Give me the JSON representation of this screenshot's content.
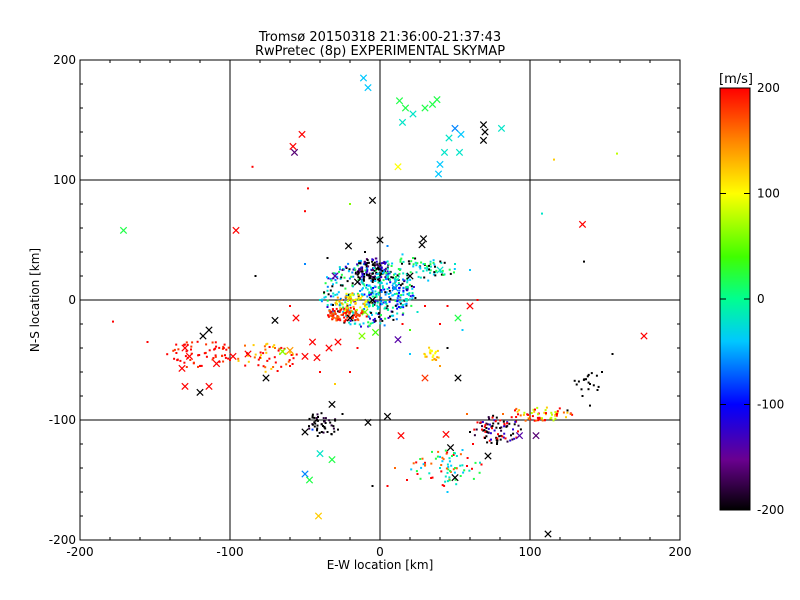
{
  "chart_data": {
    "type": "scatter",
    "title": "Tromsø 20150318 21:36:00-21:37:43",
    "subtitle": "RwPretec (8p) EXPERIMENTAL SKYMAP",
    "xlabel": "E-W location [km]",
    "ylabel": "N-S location [km]",
    "xlim": [
      -200,
      200
    ],
    "ylim": [
      -200,
      200
    ],
    "xticks": [
      "-200",
      "-100",
      "0",
      "100",
      "200"
    ],
    "yticks": [
      "-200",
      "-100",
      "0",
      "100",
      "200"
    ],
    "grid": true,
    "colorbar": {
      "label": "[m/s]",
      "range": [
        -200,
        200
      ],
      "ticks": [
        "200",
        "100",
        "0",
        "-100",
        "-200"
      ],
      "colors": [
        "#000000",
        "#8000a0",
        "#0000ff",
        "#00c0ff",
        "#00ff80",
        "#40ff00",
        "#ffff00",
        "#ff8000",
        "#ff0000"
      ]
    },
    "crosses": [
      {
        "x": -11,
        "y": 185,
        "v": -40
      },
      {
        "x": -8,
        "y": 177,
        "v": -40
      },
      {
        "x": 13,
        "y": 166,
        "v": 20
      },
      {
        "x": 17,
        "y": 160,
        "v": 20
      },
      {
        "x": 22,
        "y": 155,
        "v": -20
      },
      {
        "x": 30,
        "y": 160,
        "v": 20
      },
      {
        "x": 35,
        "y": 163,
        "v": 20
      },
      {
        "x": 38,
        "y": 167,
        "v": 20
      },
      {
        "x": 15,
        "y": 148,
        "v": -20
      },
      {
        "x": 50,
        "y": 143,
        "v": -60
      },
      {
        "x": 54,
        "y": 138,
        "v": -40
      },
      {
        "x": 81,
        "y": 143,
        "v": -20
      },
      {
        "x": 69,
        "y": 146,
        "v": -200
      },
      {
        "x": 70,
        "y": 140,
        "v": -200
      },
      {
        "x": 69,
        "y": 133,
        "v": -200
      },
      {
        "x": 46,
        "y": 135,
        "v": -20
      },
      {
        "x": 43,
        "y": 123,
        "v": -20
      },
      {
        "x": 53,
        "y": 123,
        "v": -20
      },
      {
        "x": 40,
        "y": 113,
        "v": -40
      },
      {
        "x": 39,
        "y": 105,
        "v": -40
      },
      {
        "x": 12,
        "y": 111,
        "v": 100
      },
      {
        "x": -52,
        "y": 138,
        "v": 200
      },
      {
        "x": -58,
        "y": 128,
        "v": 200
      },
      {
        "x": -57,
        "y": 123,
        "v": -160
      },
      {
        "x": -171,
        "y": 58,
        "v": 20
      },
      {
        "x": -96,
        "y": 58,
        "v": 200
      },
      {
        "x": -5,
        "y": 83,
        "v": -200
      },
      {
        "x": 0,
        "y": 50,
        "v": -200
      },
      {
        "x": 29,
        "y": 51,
        "v": -200
      },
      {
        "x": 28,
        "y": 46,
        "v": -200
      },
      {
        "x": -21,
        "y": 45,
        "v": -200
      },
      {
        "x": 176,
        "y": -30,
        "v": 200
      },
      {
        "x": -114,
        "y": -25,
        "v": -200
      },
      {
        "x": -118,
        "y": -30,
        "v": -200
      },
      {
        "x": -130,
        "y": -40,
        "v": 200
      },
      {
        "x": -127,
        "y": -47,
        "v": 200
      },
      {
        "x": -132,
        "y": -57,
        "v": 200
      },
      {
        "x": -130,
        "y": -72,
        "v": 200
      },
      {
        "x": -114,
        "y": -72,
        "v": 200
      },
      {
        "x": -120,
        "y": -77,
        "v": -200
      },
      {
        "x": -109,
        "y": -53,
        "v": 200
      },
      {
        "x": -98,
        "y": -47,
        "v": 200
      },
      {
        "x": -88,
        "y": -45,
        "v": 200
      },
      {
        "x": -76,
        "y": -65,
        "v": -200
      },
      {
        "x": -70,
        "y": -17,
        "v": -200
      },
      {
        "x": -56,
        "y": -15,
        "v": 200
      },
      {
        "x": -65,
        "y": -43,
        "v": 60
      },
      {
        "x": -60,
        "y": -42,
        "v": 140
      },
      {
        "x": -50,
        "y": -47,
        "v": 200
      },
      {
        "x": -42,
        "y": -48,
        "v": 200
      },
      {
        "x": -34,
        "y": -40,
        "v": 200
      },
      {
        "x": -28,
        "y": -35,
        "v": 200
      },
      {
        "x": -45,
        "y": -35,
        "v": 200
      },
      {
        "x": -12,
        "y": -30,
        "v": 60
      },
      {
        "x": -20,
        "y": -15,
        "v": -200
      },
      {
        "x": -3,
        "y": -27,
        "v": 40
      },
      {
        "x": 12,
        "y": -33,
        "v": -140
      },
      {
        "x": 52,
        "y": -15,
        "v": 20
      },
      {
        "x": 52,
        "y": -65,
        "v": -200
      },
      {
        "x": 30,
        "y": -65,
        "v": 180
      },
      {
        "x": -8,
        "y": -102,
        "v": -200
      },
      {
        "x": 5,
        "y": -97,
        "v": -200
      },
      {
        "x": -32,
        "y": -87,
        "v": -200
      },
      {
        "x": -50,
        "y": -110,
        "v": -200
      },
      {
        "x": -40,
        "y": -128,
        "v": -20
      },
      {
        "x": -32,
        "y": -133,
        "v": 20
      },
      {
        "x": -50,
        "y": -145,
        "v": -60
      },
      {
        "x": -47,
        "y": -150,
        "v": 20
      },
      {
        "x": -41,
        "y": -180,
        "v": 120
      },
      {
        "x": 14,
        "y": -113,
        "v": 200
      },
      {
        "x": 44,
        "y": -112,
        "v": 200
      },
      {
        "x": 47,
        "y": -123,
        "v": -200
      },
      {
        "x": 50,
        "y": -148,
        "v": -200
      },
      {
        "x": 72,
        "y": -130,
        "v": -200
      },
      {
        "x": 93,
        "y": -113,
        "v": -140
      },
      {
        "x": 104,
        "y": -113,
        "v": -160
      },
      {
        "x": 112,
        "y": -195,
        "v": -200
      },
      {
        "x": -30,
        "y": 20,
        "v": -140
      },
      {
        "x": -15,
        "y": 15,
        "v": -200
      },
      {
        "x": -5,
        "y": 0,
        "v": -200
      },
      {
        "x": -10,
        "y": -10,
        "v": 60
      },
      {
        "x": 10,
        "y": 10,
        "v": -60
      },
      {
        "x": 20,
        "y": 20,
        "v": -200
      },
      {
        "x": 40,
        "y": 25,
        "v": -20
      },
      {
        "x": 135,
        "y": 63,
        "v": 200
      },
      {
        "x": 60,
        "y": -5,
        "v": 200
      }
    ],
    "points": [
      {
        "x": -85,
        "y": 111,
        "v": 200
      },
      {
        "x": -48,
        "y": 93,
        "v": 200
      },
      {
        "x": -50,
        "y": 74,
        "v": 200
      },
      {
        "x": -20,
        "y": 80,
        "v": 60
      },
      {
        "x": 116,
        "y": 117,
        "v": 120
      },
      {
        "x": 158,
        "y": 122,
        "v": 80
      },
      {
        "x": 108,
        "y": 72,
        "v": -20
      },
      {
        "x": 135,
        "y": 63,
        "v": 160
      },
      {
        "x": 136,
        "y": 32,
        "v": -200
      },
      {
        "x": -83,
        "y": 20,
        "v": -200
      },
      {
        "x": -178,
        "y": -18,
        "v": 200
      },
      {
        "x": -155,
        "y": -35,
        "v": 200
      },
      {
        "x": 155,
        "y": -45,
        "v": -200
      },
      {
        "x": 145,
        "y": -75,
        "v": -200
      },
      {
        "x": 140,
        "y": -70,
        "v": -200
      },
      {
        "x": 148,
        "y": -60,
        "v": -200
      },
      {
        "x": 135,
        "y": -80,
        "v": -200
      },
      {
        "x": 125,
        "y": -92,
        "v": -200
      },
      {
        "x": 140,
        "y": -88,
        "v": -200
      },
      {
        "x": 118,
        "y": -95,
        "v": 200
      },
      {
        "x": 110,
        "y": -100,
        "v": 200
      },
      {
        "x": 100,
        "y": -97,
        "v": 160
      },
      {
        "x": 90,
        "y": -92,
        "v": 200
      },
      {
        "x": 82,
        "y": -95,
        "v": 160
      },
      {
        "x": 75,
        "y": -98,
        "v": 200
      },
      {
        "x": 65,
        "y": -102,
        "v": 200
      },
      {
        "x": 58,
        "y": -95,
        "v": 160
      },
      {
        "x": 60,
        "y": -110,
        "v": -200
      },
      {
        "x": 70,
        "y": -115,
        "v": -200
      },
      {
        "x": 78,
        "y": -120,
        "v": -200
      },
      {
        "x": 85,
        "y": -118,
        "v": -180
      },
      {
        "x": 75,
        "y": -105,
        "v": -200
      },
      {
        "x": 68,
        "y": -108,
        "v": 200
      },
      {
        "x": 62,
        "y": -120,
        "v": 200
      },
      {
        "x": 55,
        "y": -125,
        "v": -40
      },
      {
        "x": 48,
        "y": -130,
        "v": 20
      },
      {
        "x": 40,
        "y": -140,
        "v": -20
      },
      {
        "x": 35,
        "y": -148,
        "v": 200
      },
      {
        "x": 30,
        "y": -138,
        "v": 160
      },
      {
        "x": 25,
        "y": -145,
        "v": 200
      },
      {
        "x": 18,
        "y": -150,
        "v": 200
      },
      {
        "x": 10,
        "y": -140,
        "v": 160
      },
      {
        "x": 5,
        "y": -155,
        "v": 200
      },
      {
        "x": 45,
        "y": -160,
        "v": -40
      },
      {
        "x": 50,
        "y": -140,
        "v": 20
      },
      {
        "x": -35,
        "y": -110,
        "v": -200
      },
      {
        "x": -42,
        "y": -100,
        "v": -200
      },
      {
        "x": -38,
        "y": -105,
        "v": -200
      },
      {
        "x": -30,
        "y": -100,
        "v": -200
      },
      {
        "x": -28,
        "y": -108,
        "v": -200
      },
      {
        "x": -45,
        "y": -108,
        "v": -80
      },
      {
        "x": -25,
        "y": -95,
        "v": -200
      },
      {
        "x": -5,
        "y": -155,
        "v": -200
      },
      {
        "x": -20,
        "y": -60,
        "v": 200
      },
      {
        "x": -40,
        "y": -60,
        "v": 200
      },
      {
        "x": -60,
        "y": -55,
        "v": 200
      },
      {
        "x": -80,
        "y": -48,
        "v": 200
      },
      {
        "x": -100,
        "y": -50,
        "v": 200
      },
      {
        "x": -120,
        "y": -55,
        "v": 200
      },
      {
        "x": -135,
        "y": -50,
        "v": 200
      },
      {
        "x": -70,
        "y": -40,
        "v": 160
      },
      {
        "x": -90,
        "y": -38,
        "v": 160
      },
      {
        "x": -30,
        "y": -70,
        "v": 120
      },
      {
        "x": 35,
        "y": -50,
        "v": 120
      },
      {
        "x": 40,
        "y": -55,
        "v": 140
      },
      {
        "x": 45,
        "y": -40,
        "v": -200
      },
      {
        "x": 20,
        "y": -45,
        "v": -40
      },
      {
        "x": 25,
        "y": -10,
        "v": -20
      },
      {
        "x": 30,
        "y": -5,
        "v": 200
      },
      {
        "x": 45,
        "y": -5,
        "v": 200
      },
      {
        "x": 65,
        "y": 0,
        "v": 200
      },
      {
        "x": 40,
        "y": -20,
        "v": 200
      },
      {
        "x": -40,
        "y": 0,
        "v": -20
      },
      {
        "x": -60,
        "y": -5,
        "v": 200
      },
      {
        "x": 60,
        "y": 25,
        "v": -40
      },
      {
        "x": 50,
        "y": 30,
        "v": -20
      },
      {
        "x": 55,
        "y": -25,
        "v": -40
      },
      {
        "x": -50,
        "y": 30,
        "v": -60
      },
      {
        "x": -35,
        "y": 35,
        "v": -200
      },
      {
        "x": 5,
        "y": 45,
        "v": -60
      },
      {
        "x": -10,
        "y": 40,
        "v": -200
      },
      {
        "x": 15,
        "y": 38,
        "v": -40
      },
      {
        "x": 22,
        "y": 35,
        "v": 20
      },
      {
        "x": 30,
        "y": 30,
        "v": 20
      },
      {
        "x": -25,
        "y": 25,
        "v": -160
      },
      {
        "x": 20,
        "y": -25,
        "v": 40
      },
      {
        "x": 15,
        "y": -20,
        "v": 200
      },
      {
        "x": -15,
        "y": -40,
        "v": 200
      }
    ],
    "clusters": [
      {
        "cx": -8,
        "cy": 5,
        "rx": 32,
        "ry": 28,
        "v": [
          -40,
          -20,
          20,
          -60,
          -120,
          -200
        ],
        "n": 300,
        "seed": 11
      },
      {
        "cx": -5,
        "cy": 25,
        "rx": 12,
        "ry": 10,
        "v": [
          -200,
          -200,
          -160,
          -120
        ],
        "n": 120,
        "seed": 21
      },
      {
        "cx": 22,
        "cy": 25,
        "rx": 28,
        "ry": 10,
        "v": [
          -40,
          20,
          -200,
          -20
        ],
        "n": 90,
        "seed": 31
      },
      {
        "cx": -22,
        "cy": -12,
        "rx": 14,
        "ry": 6,
        "v": [
          200,
          180,
          160
        ],
        "n": 90,
        "seed": 41
      },
      {
        "cx": -18,
        "cy": -2,
        "rx": 12,
        "ry": 8,
        "v": [
          120,
          100,
          140,
          80
        ],
        "n": 60,
        "seed": 51
      },
      {
        "cx": 5,
        "cy": 5,
        "rx": 18,
        "ry": 14,
        "v": [
          -20,
          -40,
          -60,
          -100,
          0
        ],
        "n": 120,
        "seed": 61
      },
      {
        "cx": -120,
        "cy": -45,
        "rx": 22,
        "ry": 12,
        "v": [
          200,
          200,
          180
        ],
        "n": 60,
        "seed": 71
      },
      {
        "cx": -75,
        "cy": -48,
        "rx": 20,
        "ry": 12,
        "v": [
          200,
          160,
          120,
          200
        ],
        "n": 50,
        "seed": 81
      },
      {
        "cx": -38,
        "cy": -103,
        "rx": 10,
        "ry": 12,
        "v": [
          -200,
          -200,
          -180
        ],
        "n": 45,
        "seed": 91
      },
      {
        "cx": 78,
        "cy": -108,
        "rx": 16,
        "ry": 12,
        "v": [
          -200,
          -200,
          -180,
          200,
          -120
        ],
        "n": 80,
        "seed": 101
      },
      {
        "cx": 105,
        "cy": -95,
        "rx": 25,
        "ry": 6,
        "v": [
          200,
          160,
          120,
          80
        ],
        "n": 60,
        "seed": 111
      },
      {
        "cx": 45,
        "cy": -140,
        "rx": 25,
        "ry": 15,
        "v": [
          -40,
          -20,
          20,
          160,
          200
        ],
        "n": 70,
        "seed": 121
      },
      {
        "cx": 35,
        "cy": -45,
        "rx": 6,
        "ry": 6,
        "v": [
          120,
          100,
          140
        ],
        "n": 20,
        "seed": 131
      },
      {
        "cx": 138,
        "cy": -68,
        "rx": 10,
        "ry": 8,
        "v": [
          -200
        ],
        "n": 15,
        "seed": 141
      }
    ]
  }
}
